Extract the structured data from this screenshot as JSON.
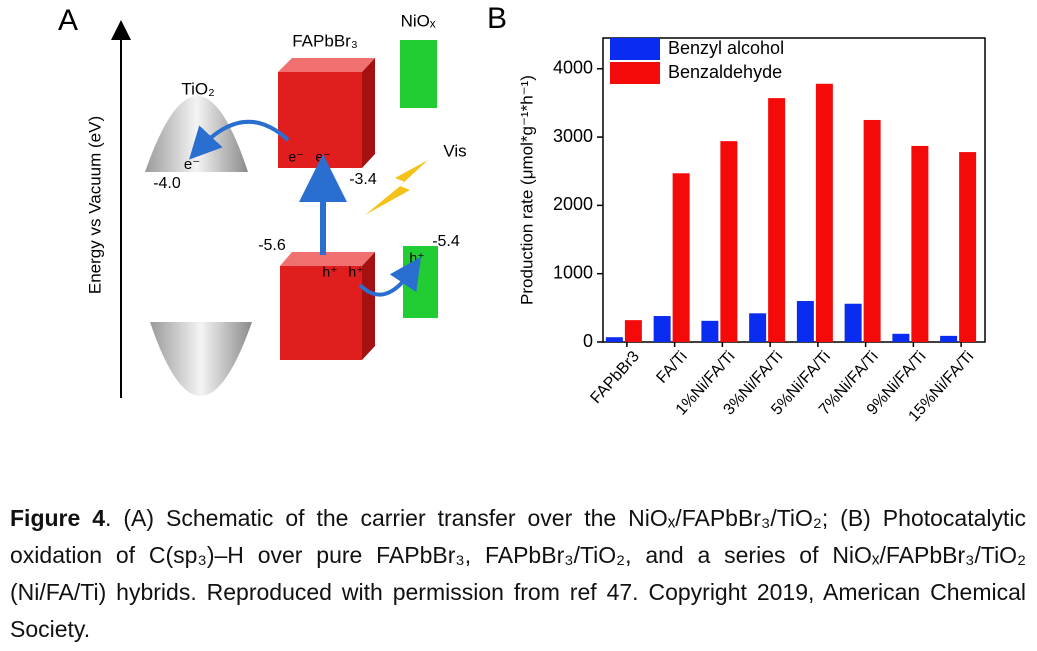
{
  "panel_a": {
    "label": "A",
    "axis_label": "Energy vs Vacuum (eV)",
    "tio2": "TiO₂",
    "perovskite": "FAPbBr₃",
    "niox": "NiOₓ",
    "tio2_level": "-4.0",
    "perovskite_cb": "-3.4",
    "perovskite_vb": "-5.6",
    "niox_level": "-5.4",
    "light": "Vis",
    "tio2_electron": "e⁻",
    "perovskite_electrons": [
      "e⁻",
      "e⁻"
    ],
    "perovskite_holes": [
      "h⁺",
      "h⁺"
    ],
    "niox_hole": "h⁺"
  },
  "chart_data": {
    "type": "bar",
    "panel_label": "B",
    "y_label": "Production rate (μmol*g⁻¹*h⁻¹)",
    "categories": [
      "FAPbBr3",
      "FA/Ti",
      "1%Ni/FA/Ti",
      "3%Ni/FA/Ti",
      "5%Ni/FA/Ti",
      "7%Ni/FA/Ti",
      "9%Ni/FA/Ti",
      "15%Ni/FA/Ti"
    ],
    "series": [
      {
        "name": "Benzyl alcohol",
        "color": "#0a2cf0",
        "values": [
          70,
          380,
          310,
          420,
          600,
          560,
          120,
          90
        ]
      },
      {
        "name": "Benzaldehyde",
        "color": "#f50a0a",
        "values": [
          320,
          2470,
          2940,
          3570,
          3780,
          3250,
          2870,
          2780
        ]
      }
    ],
    "ylim": [
      0,
      4450
    ],
    "yticks": [
      0,
      1000,
      2000,
      3000,
      4000
    ],
    "legend": "upper left"
  },
  "caption": [
    "Figure 4",
    ". (A) Schematic of the carrier transfer over the NiOₓ/FAPbBr₃/TiO₂; (B) Photocatalytic oxidation of C(sp₃)–H over pure FAPbBr₃, FAPbBr₃/TiO₂, and a series of NiOₓ/FAPbBr₃/TiO₂ (Ni/FA/Ti) hybrids. Reproduced with permission from ref 47. Copyright 2019, American Chemical Society."
  ]
}
